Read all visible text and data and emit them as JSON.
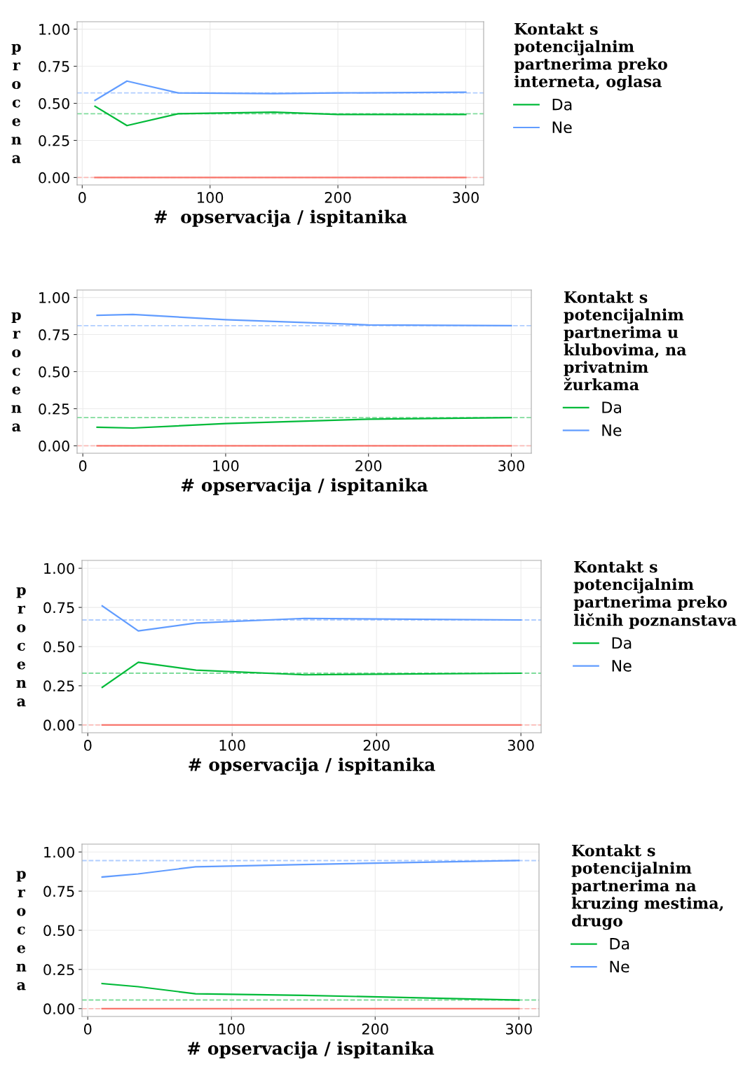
{
  "chart_data": [
    {
      "type": "line",
      "xlabel": "#  opservacija / ispitanika",
      "ylabel": "procena",
      "legend_title": "Kontakt s\npotencijalnim\npartnerima preko\ninterneta, oglasa",
      "xlim": [
        -4,
        314
      ],
      "xticks": [
        0,
        100,
        200,
        300
      ],
      "ylim": [
        -0.05,
        1.05
      ],
      "yticks": [
        {
          "value": 0,
          "label": "0.00"
        },
        {
          "value": 0.25,
          "label": "0.25"
        },
        {
          "value": 0.5,
          "label": "0.50"
        },
        {
          "value": 0.75,
          "label": "0.75"
        },
        {
          "value": 1,
          "label": "1.00"
        }
      ],
      "grid": true,
      "legend": "right",
      "series": [
        {
          "name": "Da",
          "color": "#00ba38",
          "x": [
            10,
            35,
            75,
            150,
            200,
            300
          ],
          "values": [
            0.48,
            0.35,
            0.43,
            0.44,
            0.425,
            0.425
          ]
        },
        {
          "name": "Ne",
          "color": "#619cff",
          "x": [
            10,
            35,
            75,
            150,
            200,
            300
          ],
          "values": [
            0.52,
            0.65,
            0.57,
            0.565,
            0.57,
            0.575
          ]
        },
        {
          "color": "#f8766d",
          "x": [
            10,
            300
          ],
          "values": [
            0,
            0
          ]
        }
      ],
      "ref_lines": [
        {
          "axis": "y",
          "value": 0.43,
          "color": "#7fdc9b",
          "line_style": "dashed"
        },
        {
          "axis": "y",
          "value": 0.57,
          "color": "#b0cdff",
          "line_style": "dashed"
        },
        {
          "axis": "y",
          "value": 0,
          "color": "#fbbab6",
          "line_style": "dashed"
        }
      ]
    },
    {
      "type": "line",
      "xlabel": "# opservacija / ispitanika",
      "ylabel": "procena",
      "legend_title": "Kontakt s\npotencijalnim\npartnerima u\nklubovima, na\nprivatnim\nžurkama",
      "xlim": [
        -4,
        314
      ],
      "xticks": [
        0,
        100,
        200,
        300
      ],
      "ylim": [
        -0.05,
        1.05
      ],
      "yticks": [
        {
          "value": 0,
          "label": "0.00"
        },
        {
          "value": 0.25,
          "label": "0.25"
        },
        {
          "value": 0.5,
          "label": "0.50"
        },
        {
          "value": 0.75,
          "label": "0.75"
        },
        {
          "value": 1,
          "label": "1.00"
        }
      ],
      "grid": true,
      "legend": "right",
      "series": [
        {
          "name": "Da",
          "color": "#00ba38",
          "x": [
            10,
            35,
            100,
            200,
            300
          ],
          "values": [
            0.125,
            0.12,
            0.15,
            0.18,
            0.19
          ]
        },
        {
          "name": "Ne",
          "color": "#619cff",
          "x": [
            10,
            35,
            100,
            200,
            300
          ],
          "values": [
            0.88,
            0.885,
            0.85,
            0.815,
            0.81
          ]
        },
        {
          "color": "#f8766d",
          "x": [
            10,
            300
          ],
          "values": [
            0,
            0
          ]
        }
      ],
      "ref_lines": [
        {
          "axis": "y",
          "value": 0.19,
          "color": "#7fdc9b",
          "line_style": "dashed"
        },
        {
          "axis": "y",
          "value": 0.81,
          "color": "#b0cdff",
          "line_style": "dashed"
        },
        {
          "axis": "y",
          "value": 0,
          "color": "#fbbab6",
          "line_style": "dashed"
        }
      ]
    },
    {
      "type": "line",
      "xlabel": "# opservacija / ispitanika",
      "ylabel": "procena",
      "legend_title": "Kontakt s\npotencijalnim\npartnerima preko\nličnih poznanstava",
      "xlim": [
        -4,
        314
      ],
      "xticks": [
        0,
        100,
        200,
        300
      ],
      "ylim": [
        -0.05,
        1.05
      ],
      "yticks": [
        {
          "value": 0,
          "label": "0.00"
        },
        {
          "value": 0.25,
          "label": "0.25"
        },
        {
          "value": 0.5,
          "label": "0.50"
        },
        {
          "value": 0.75,
          "label": "0.75"
        },
        {
          "value": 1,
          "label": "1.00"
        }
      ],
      "grid": true,
      "legend": "right",
      "series": [
        {
          "name": "Da",
          "color": "#00ba38",
          "x": [
            10,
            35,
            75,
            150,
            300
          ],
          "values": [
            0.24,
            0.4,
            0.35,
            0.32,
            0.33
          ]
        },
        {
          "name": "Ne",
          "color": "#619cff",
          "x": [
            10,
            35,
            75,
            150,
            300
          ],
          "values": [
            0.76,
            0.6,
            0.65,
            0.68,
            0.67
          ]
        },
        {
          "color": "#f8766d",
          "x": [
            10,
            300
          ],
          "values": [
            0,
            0
          ]
        }
      ],
      "ref_lines": [
        {
          "axis": "y",
          "value": 0.33,
          "color": "#7fdc9b",
          "line_style": "dashed"
        },
        {
          "axis": "y",
          "value": 0.67,
          "color": "#b0cdff",
          "line_style": "dashed"
        },
        {
          "axis": "y",
          "value": 0,
          "color": "#fbbab6",
          "line_style": "dashed"
        }
      ]
    },
    {
      "type": "line",
      "xlabel": "# opservacija / ispitanika",
      "ylabel": "procena",
      "legend_title": "Kontakt s\npotencijalnim\npartnerima na\nkruzing mestima,\ndrugo",
      "xlim": [
        -4,
        314
      ],
      "xticks": [
        0,
        100,
        200,
        300
      ],
      "ylim": [
        -0.05,
        1.05
      ],
      "yticks": [
        {
          "value": 0,
          "label": "0.00"
        },
        {
          "value": 0.25,
          "label": "0.25"
        },
        {
          "value": 0.5,
          "label": "0.50"
        },
        {
          "value": 0.75,
          "label": "0.75"
        },
        {
          "value": 1,
          "label": "1.00"
        }
      ],
      "grid": true,
      "legend": "right",
      "series": [
        {
          "name": "Da",
          "color": "#00ba38",
          "x": [
            10,
            35,
            75,
            150,
            300
          ],
          "values": [
            0.16,
            0.14,
            0.095,
            0.085,
            0.055
          ]
        },
        {
          "name": "Ne",
          "color": "#619cff",
          "x": [
            10,
            35,
            75,
            150,
            300
          ],
          "values": [
            0.84,
            0.86,
            0.905,
            0.92,
            0.945
          ]
        },
        {
          "color": "#f8766d",
          "x": [
            10,
            300
          ],
          "values": [
            0,
            0
          ]
        }
      ],
      "ref_lines": [
        {
          "axis": "y",
          "value": 0.055,
          "color": "#7fdc9b",
          "line_style": "dashed"
        },
        {
          "axis": "y",
          "value": 0.945,
          "color": "#b0cdff",
          "line_style": "dashed"
        },
        {
          "axis": "y",
          "value": 0,
          "color": "#fbbab6",
          "line_style": "dashed"
        }
      ]
    }
  ]
}
